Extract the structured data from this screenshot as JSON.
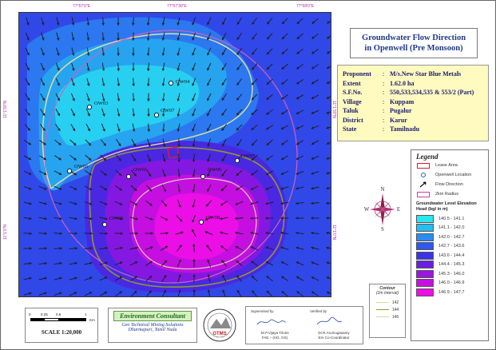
{
  "title": {
    "line1": "Groundwater Flow Direction",
    "line2": "in Openwell (Pre Monsoon)"
  },
  "info": [
    {
      "k": "Proponent",
      "v": "M/s.New Star Blue Metals"
    },
    {
      "k": "Extent",
      "v": "1.62.0 ha"
    },
    {
      "k": "S.F.No.",
      "v": "550,533,534,535 & 553/2 (Part)"
    },
    {
      "k": "Village",
      "v": "Kuppam"
    },
    {
      "k": "Taluk",
      "v": "Pugalur"
    },
    {
      "k": "District",
      "v": "Karur"
    },
    {
      "k": "State",
      "v": "Tamilnadu"
    }
  ],
  "coords": {
    "top": [
      "77°57'0\"E",
      "77°57'30\"E",
      "77°58'0\"E"
    ],
    "left": [
      "11°1'30\"N",
      "11°1'0\"N"
    ],
    "right": [
      "11°1'30\"N",
      "11°1'0\"N"
    ]
  },
  "wells": [
    {
      "id": "OW04",
      "label": "OW04"
    },
    {
      "id": "OW03",
      "label": "OW03"
    },
    {
      "id": "OW07",
      "label": "OW07"
    },
    {
      "id": "OW05",
      "label": "OW05"
    },
    {
      "id": "OW01",
      "label": "OW01"
    },
    {
      "id": "OW06",
      "label": "OW06"
    },
    {
      "id": "OW02",
      "label": "OW02"
    },
    {
      "id": "OW08",
      "label": "OW08"
    },
    {
      "id": "OW07b",
      "label": "OW07"
    }
  ],
  "legend": {
    "title": "Legend",
    "items": [
      "Lease Area",
      "Openwell Location",
      "Flow Direction",
      "2km Radius"
    ],
    "ramp_title": "Groundwater Level Elevation Head (bgl in m)",
    "ramp": [
      {
        "label": "140.5 - 141.1",
        "color": "#27e8f0"
      },
      {
        "label": "141.1 - 142.0",
        "color": "#25bdf2"
      },
      {
        "label": "142.0 - 142.7",
        "color": "#2a8cf3"
      },
      {
        "label": "142.7 - 143.6",
        "color": "#2f58ee"
      },
      {
        "label": "143.6 - 144.4",
        "color": "#3a34e6"
      },
      {
        "label": "144.4 - 145.3",
        "color": "#6a1ee0"
      },
      {
        "label": "145.3 - 146.0",
        "color": "#9a17e0"
      },
      {
        "label": "146.0 - 146.9",
        "color": "#c610e0"
      },
      {
        "label": "146.9 - 147.7",
        "color": "#ee0ee8"
      }
    ]
  },
  "contour": {
    "title": "Contour",
    "subtitle": "(2m Interval)",
    "items": [
      {
        "label": "142",
        "color": "#e0d9a0"
      },
      {
        "label": "144",
        "color": "#8a9a30"
      },
      {
        "label": "146",
        "color": "#d8d0b8"
      }
    ]
  },
  "scale": {
    "ticks": [
      "0",
      "0.25",
      "0.5",
      "1"
    ],
    "unit": "Km",
    "text": "SCALE 1:20,000"
  },
  "consultant": {
    "name": "Environment Consultant",
    "l1": "Geo Technical Mining Solutions",
    "l2": "Dharmapuri, Tamil Nadu"
  },
  "gtms": "GTMS",
  "sign": {
    "left_head": "Supervised by",
    "left_name": "Dr.P.Vijaya Tirumi",
    "left_sub": "FAE – (HG, GS)",
    "right_head": "Verified by",
    "right_name": "Dr.R.Arumugasamy",
    "right_sub": "EIA Co-Coordinator"
  },
  "compass": {
    "n": "N",
    "s": "S",
    "e": "E",
    "w": "W"
  }
}
